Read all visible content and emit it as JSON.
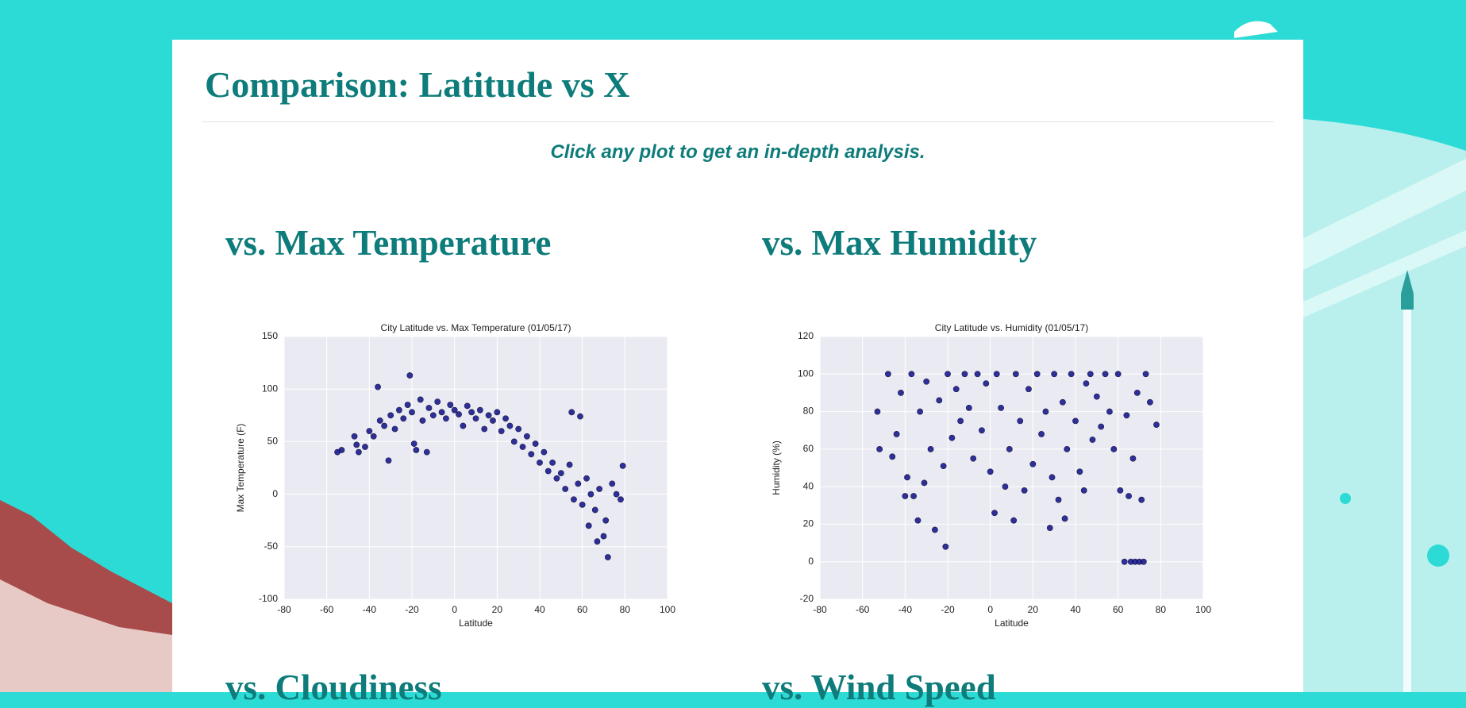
{
  "header": {
    "title": "Comparison: Latitude vs X",
    "subtitle": "Click any plot to get an in-depth analysis."
  },
  "sections": [
    "vs. Max Temperature",
    "vs. Max Humidity",
    "vs. Cloudiness",
    "vs. Wind Speed"
  ],
  "chart_data": [
    {
      "type": "scatter",
      "title": "City Latitude vs. Max Temperature (01/05/17)",
      "x_label": "Latitude",
      "y_label": "Max Temperature (F)",
      "color": "#1b1b8f",
      "grid": true,
      "xlim": [
        -80,
        100
      ],
      "xticks": [
        -80,
        -60,
        -40,
        -20,
        0,
        20,
        40,
        60,
        80,
        100
      ],
      "ylim": [
        -100,
        150
      ],
      "yticks": [
        -100,
        -50,
        0,
        50,
        100,
        150
      ],
      "x": [
        -55,
        -53,
        -47,
        -46,
        -45,
        -42,
        -40,
        -38,
        -36,
        -35,
        -33,
        -31,
        -30,
        -28,
        -26,
        -24,
        -22,
        -21,
        -20,
        -19,
        -18,
        -16,
        -15,
        -13,
        -12,
        -10,
        -8,
        -6,
        -4,
        -2,
        0,
        2,
        4,
        6,
        8,
        10,
        12,
        14,
        16,
        18,
        20,
        22,
        24,
        26,
        28,
        30,
        32,
        34,
        36,
        38,
        40,
        42,
        44,
        46,
        48,
        50,
        52,
        54,
        55,
        56,
        58,
        59,
        60,
        62,
        63,
        64,
        66,
        67,
        68,
        70,
        71,
        72,
        74,
        76,
        78,
        79
      ],
      "values": [
        40,
        42,
        55,
        47,
        40,
        45,
        60,
        55,
        102,
        70,
        65,
        32,
        75,
        62,
        80,
        72,
        85,
        113,
        78,
        48,
        42,
        90,
        70,
        40,
        82,
        75,
        88,
        78,
        72,
        85,
        80,
        76,
        65,
        84,
        78,
        72,
        80,
        62,
        75,
        70,
        78,
        60,
        72,
        65,
        50,
        62,
        45,
        55,
        38,
        48,
        30,
        40,
        22,
        30,
        15,
        20,
        5,
        28,
        78,
        -5,
        10,
        74,
        -10,
        15,
        -30,
        0,
        -15,
        -45,
        5,
        -40,
        -25,
        -60,
        10,
        0,
        -5,
        27
      ]
    },
    {
      "type": "scatter",
      "title": "City Latitude vs. Humidity (01/05/17)",
      "x_label": "Latitude",
      "y_label": "Humidity (%)",
      "color": "#1b1b8f",
      "grid": true,
      "xlim": [
        -80,
        100
      ],
      "xticks": [
        -80,
        -60,
        -40,
        -20,
        0,
        20,
        40,
        60,
        80,
        100
      ],
      "ylim": [
        -20,
        120
      ],
      "yticks": [
        -20,
        0,
        20,
        40,
        60,
        80,
        100,
        120
      ],
      "x": [
        -53,
        -52,
        -48,
        -46,
        -44,
        -42,
        -40,
        -39,
        -37,
        -36,
        -34,
        -33,
        -31,
        -30,
        -28,
        -26,
        -24,
        -22,
        -21,
        -20,
        -18,
        -16,
        -14,
        -12,
        -10,
        -8,
        -6,
        -4,
        -2,
        0,
        2,
        3,
        5,
        7,
        9,
        11,
        12,
        14,
        16,
        18,
        20,
        22,
        24,
        26,
        28,
        29,
        30,
        32,
        34,
        35,
        36,
        38,
        40,
        42,
        44,
        45,
        47,
        48,
        50,
        52,
        54,
        56,
        58,
        60,
        61,
        63,
        64,
        65,
        66,
        67,
        68,
        69,
        70,
        71,
        72,
        73,
        75,
        78
      ],
      "values": [
        80,
        60,
        100,
        56,
        68,
        90,
        35,
        45,
        100,
        35,
        22,
        80,
        42,
        96,
        60,
        17,
        86,
        51,
        8,
        100,
        66,
        92,
        75,
        100,
        82,
        55,
        100,
        70,
        95,
        48,
        26,
        100,
        82,
        40,
        60,
        22,
        100,
        75,
        38,
        92,
        52,
        100,
        68,
        80,
        18,
        45,
        100,
        33,
        85,
        23,
        60,
        100,
        75,
        48,
        38,
        95,
        100,
        65,
        88,
        72,
        100,
        80,
        60,
        100,
        38,
        0,
        78,
        35,
        0,
        55,
        0,
        90,
        0,
        33,
        0,
        100,
        85,
        73
      ]
    }
  ]
}
